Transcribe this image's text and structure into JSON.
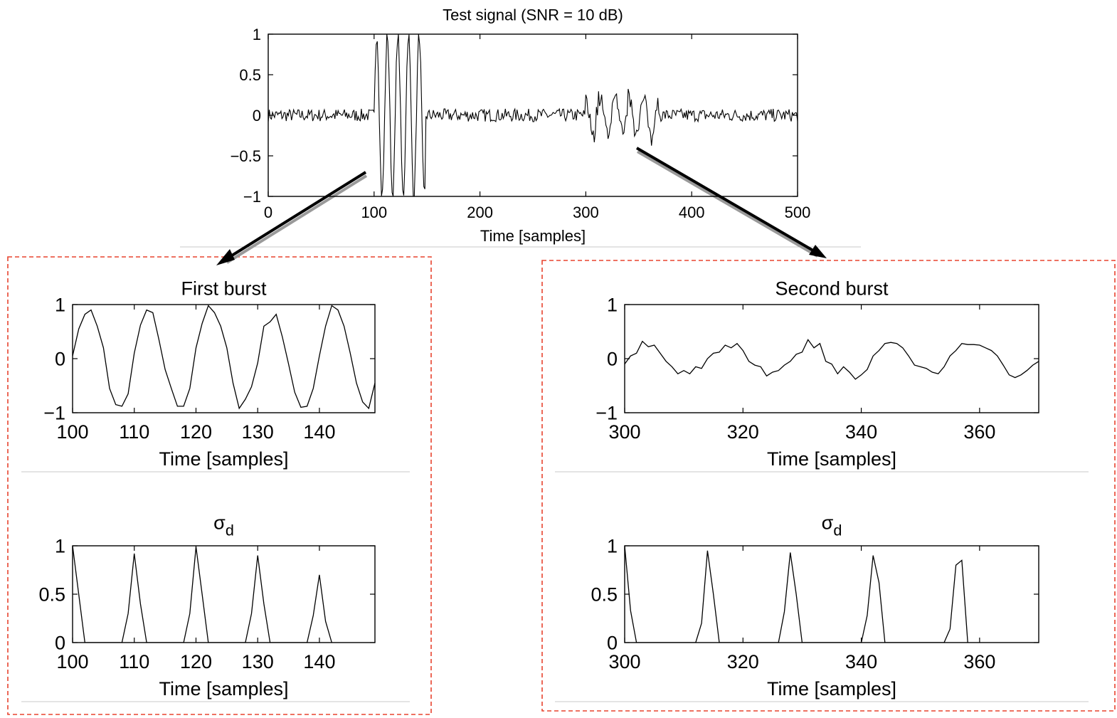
{
  "colors": {
    "line": "#000000",
    "box_dash": "#e8432e",
    "separator": "#c8c8c8",
    "arrow_shadow": "#9a9a9a"
  },
  "chart_data": [
    {
      "id": "top",
      "type": "line",
      "title": "Test signal (SNR = 10 dB)",
      "title_sub": "",
      "xlabel": "Time [samples]",
      "ylabel": "",
      "xlim": [
        0,
        500
      ],
      "ylim": [
        -1,
        1
      ],
      "xticks": [
        0,
        100,
        200,
        300,
        400,
        500
      ],
      "yticks": [
        -1,
        -0.5,
        0,
        0.5,
        1
      ],
      "ytick_labels": [
        "−1",
        "−0.5",
        "0",
        "0.5",
        "1"
      ],
      "grid": false,
      "signal": {
        "n": 500,
        "bursts": [
          {
            "start": 100,
            "end": 148,
            "amp": 1.0,
            "period": 10,
            "phase": 0
          },
          {
            "start": 300,
            "end": 368,
            "amp": 0.3,
            "period": 14,
            "phase": 4
          }
        ],
        "noise": 0.08
      }
    },
    {
      "id": "first-burst",
      "type": "line",
      "title": "First burst",
      "title_sub": "",
      "xlabel": "Time [samples]",
      "ylabel": "",
      "xlim": [
        100,
        149
      ],
      "ylim": [
        -1,
        1
      ],
      "xticks": [
        100,
        110,
        120,
        130,
        140
      ],
      "yticks": [
        -1,
        0,
        1
      ],
      "ytick_labels": [
        "−1",
        "0",
        "1"
      ],
      "grid": false,
      "x": [
        100,
        101,
        102,
        103,
        104,
        105,
        106,
        107,
        108,
        109,
        110,
        111,
        112,
        113,
        114,
        115,
        116,
        117,
        118,
        119,
        120,
        121,
        122,
        123,
        124,
        125,
        126,
        127,
        128,
        129,
        130,
        131,
        132,
        133,
        134,
        135,
        136,
        137,
        138,
        139,
        140,
        141,
        142,
        143,
        144,
        145,
        146,
        147,
        148,
        149
      ],
      "y": [
        0.05,
        0.55,
        0.82,
        0.9,
        0.6,
        0.2,
        -0.55,
        -0.85,
        -0.88,
        -0.65,
        0.1,
        0.62,
        0.9,
        0.85,
        0.35,
        -0.2,
        -0.55,
        -0.88,
        -0.88,
        -0.55,
        0.2,
        0.65,
        0.98,
        0.85,
        0.6,
        0.2,
        -0.45,
        -0.92,
        -0.75,
        -0.52,
        -0.08,
        0.6,
        0.68,
        0.82,
        0.4,
        -0.1,
        -0.62,
        -0.9,
        -0.88,
        -0.55,
        0.05,
        0.6,
        0.98,
        0.9,
        0.6,
        0.1,
        -0.45,
        -0.8,
        -0.92,
        -0.45
      ]
    },
    {
      "id": "second-burst",
      "type": "line",
      "title": "Second burst",
      "title_sub": "",
      "xlabel": "Time [samples]",
      "ylabel": "",
      "xlim": [
        300,
        370
      ],
      "ylim": [
        -1,
        1
      ],
      "xticks": [
        300,
        320,
        340,
        360
      ],
      "yticks": [
        -1,
        0,
        1
      ],
      "ytick_labels": [
        "−1",
        "0",
        "1"
      ],
      "grid": false,
      "x": [
        300,
        301,
        302,
        303,
        304,
        305,
        306,
        307,
        308,
        309,
        310,
        311,
        312,
        313,
        314,
        315,
        316,
        317,
        318,
        319,
        320,
        321,
        322,
        323,
        324,
        325,
        326,
        327,
        328,
        329,
        330,
        331,
        332,
        333,
        334,
        335,
        336,
        337,
        338,
        339,
        340,
        341,
        342,
        343,
        344,
        345,
        346,
        347,
        348,
        349,
        350,
        351,
        352,
        353,
        354,
        355,
        356,
        357,
        358,
        359,
        360,
        361,
        362,
        363,
        364,
        365,
        366,
        367,
        368,
        369,
        370
      ],
      "y": [
        -0.1,
        0.05,
        0.1,
        0.32,
        0.22,
        0.25,
        0.1,
        -0.05,
        -0.15,
        -0.28,
        -0.22,
        -0.28,
        -0.15,
        -0.18,
        0.0,
        0.1,
        0.12,
        0.25,
        0.2,
        0.28,
        0.15,
        -0.05,
        -0.12,
        -0.15,
        -0.32,
        -0.25,
        -0.22,
        -0.12,
        -0.05,
        0.08,
        0.12,
        0.35,
        0.2,
        0.28,
        -0.05,
        -0.1,
        -0.28,
        -0.15,
        -0.25,
        -0.38,
        -0.3,
        -0.2,
        0.05,
        0.15,
        0.28,
        0.3,
        0.28,
        0.2,
        0.05,
        -0.12,
        -0.15,
        -0.18,
        -0.25,
        -0.28,
        -0.15,
        0.05,
        0.15,
        0.28,
        0.26,
        0.26,
        0.25,
        0.2,
        0.15,
        0.05,
        -0.12,
        -0.3,
        -0.35,
        -0.3,
        -0.22,
        -0.12,
        -0.05
      ]
    },
    {
      "id": "sigma-first",
      "type": "line",
      "title": "σ",
      "title_sub": "d",
      "xlabel": "Time [samples]",
      "ylabel": "",
      "xlim": [
        100,
        149
      ],
      "ylim": [
        0,
        1
      ],
      "xticks": [
        100,
        110,
        120,
        130,
        140
      ],
      "yticks": [
        0,
        0.5,
        1
      ],
      "ytick_labels": [
        "0",
        "0.5",
        "1"
      ],
      "grid": false,
      "x": [
        100,
        102,
        108,
        109,
        110,
        111,
        112,
        118,
        119,
        120,
        121,
        122,
        128,
        129,
        130,
        131,
        132,
        138,
        139,
        140,
        141,
        142
      ],
      "y": [
        1,
        0,
        0,
        0.3,
        0.92,
        0.4,
        0,
        0,
        0.3,
        0.99,
        0.5,
        0,
        0,
        0.3,
        0.9,
        0.4,
        0,
        0,
        0.28,
        0.7,
        0.22,
        0
      ]
    },
    {
      "id": "sigma-second",
      "type": "line",
      "title": "σ",
      "title_sub": "d",
      "xlabel": "Time [samples]",
      "ylabel": "",
      "xlim": [
        300,
        370
      ],
      "ylim": [
        0,
        1
      ],
      "xticks": [
        300,
        320,
        340,
        360
      ],
      "yticks": [
        0,
        0.5,
        1
      ],
      "ytick_labels": [
        "0",
        "0.5",
        "1"
      ],
      "grid": false,
      "x": [
        300,
        301,
        302,
        312,
        313,
        314,
        315,
        316,
        326,
        327,
        328,
        329,
        330,
        340,
        341,
        342,
        343,
        344,
        354,
        355,
        356,
        357,
        358
      ],
      "y": [
        1,
        0.33,
        0,
        0,
        0.2,
        0.95,
        0.5,
        0,
        0,
        0.32,
        0.93,
        0.5,
        0,
        0,
        0.28,
        0.9,
        0.62,
        0,
        0,
        0.14,
        0.8,
        0.85,
        0
      ]
    }
  ]
}
